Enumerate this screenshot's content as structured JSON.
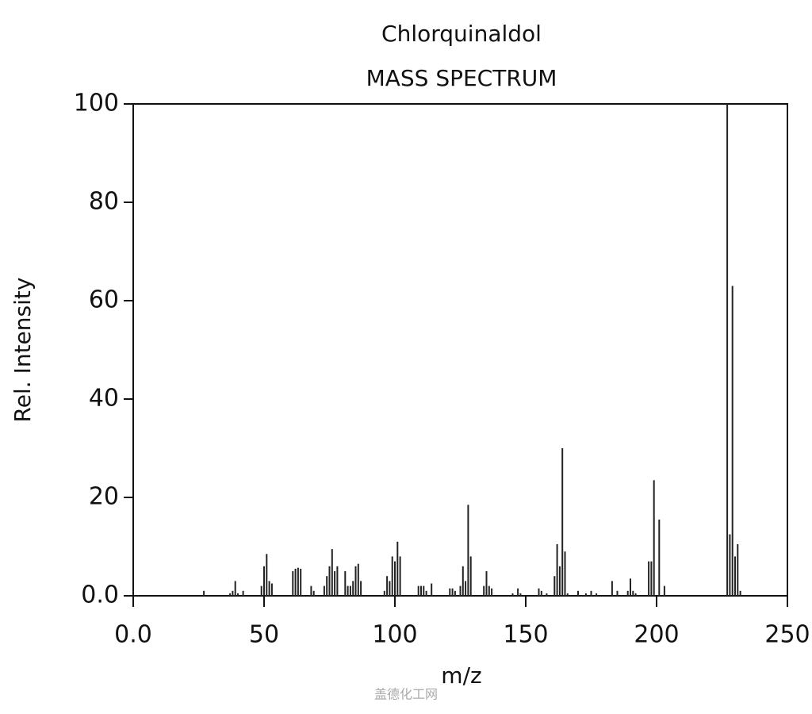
{
  "chart_data": {
    "type": "bar",
    "title": "Chlorquinaldol",
    "subtitle": "MASS SPECTRUM",
    "x_label": "m/z",
    "y_label": "Rel. Intensity",
    "watermark": "盖德化工网",
    "color": "#222222",
    "x": [
      27,
      37,
      38,
      39,
      40,
      42,
      49,
      50,
      51,
      52,
      53,
      61,
      62,
      63,
      64,
      68,
      69,
      73,
      74,
      75,
      76,
      77,
      78,
      81,
      82,
      83,
      84,
      85,
      86,
      87,
      96,
      97,
      98,
      99,
      100,
      101,
      102,
      109,
      110,
      111,
      112,
      114,
      121,
      122,
      123,
      125,
      126,
      127,
      128,
      129,
      134,
      135,
      136,
      137,
      145,
      147,
      148,
      155,
      156,
      158,
      161,
      162,
      163,
      164,
      165,
      166,
      170,
      173,
      175,
      177,
      183,
      185,
      189,
      190,
      191,
      192,
      197,
      198,
      199,
      201,
      203,
      227,
      228,
      229,
      230,
      231,
      232
    ],
    "values": [
      1,
      0.5,
      1,
      3,
      0.5,
      1,
      2,
      6,
      8.5,
      3,
      2.5,
      5,
      5.5,
      5.7,
      5.5,
      2,
      1,
      2,
      4,
      6,
      9.5,
      5,
      6,
      5,
      2,
      2,
      3,
      6,
      6.5,
      3,
      1,
      4,
      3,
      8,
      7,
      11,
      8,
      2,
      2,
      2,
      1,
      2.5,
      1.5,
      1.5,
      1,
      2,
      6,
      3,
      18.5,
      8,
      2,
      5,
      2,
      1.5,
      0.5,
      1.5,
      0.5,
      1.5,
      1,
      0.5,
      4,
      10.5,
      6,
      30,
      9,
      0.5,
      1,
      0.5,
      1,
      0.5,
      3,
      1,
      1,
      3.5,
      1,
      0.5,
      7,
      7,
      23.5,
      15.5,
      2,
      100,
      12.5,
      63,
      8,
      10.5,
      1
    ],
    "xlim": [
      0,
      250
    ],
    "ylim": [
      0,
      100
    ],
    "xticks": [
      {
        "value": 0,
        "label": "0.0"
      },
      50,
      100,
      150,
      200,
      250
    ],
    "yticks": [
      {
        "value": 0,
        "label": "0.0"
      },
      20,
      40,
      60,
      80,
      100
    ]
  }
}
